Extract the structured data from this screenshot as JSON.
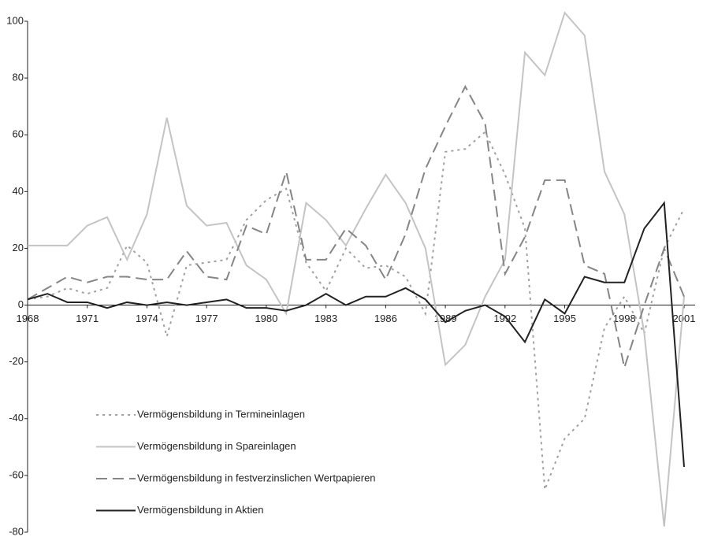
{
  "chart_data": {
    "type": "line",
    "x": [
      1968,
      1969,
      1970,
      1971,
      1972,
      1973,
      1974,
      1975,
      1976,
      1977,
      1978,
      1979,
      1980,
      1981,
      1982,
      1983,
      1984,
      1985,
      1986,
      1987,
      1988,
      1989,
      1990,
      1991,
      1992,
      1993,
      1994,
      1995,
      1996,
      1997,
      1998,
      1999,
      2000,
      2001
    ],
    "xlim": [
      1968,
      2001
    ],
    "xticks": [
      1968,
      1971,
      1974,
      1977,
      1980,
      1983,
      1986,
      1989,
      1992,
      1995,
      1998,
      2001
    ],
    "ylim": [
      -80,
      100
    ],
    "yticks": [
      -80,
      -60,
      -40,
      -20,
      0,
      20,
      40,
      60,
      80,
      100
    ],
    "grid": false,
    "legend": "lower left",
    "series": [
      {
        "name": "Vermögensbildung in Termineinlagen",
        "color": "#a0a0a0",
        "style": "dotted",
        "values": [
          2,
          3,
          6,
          4,
          6,
          21,
          15,
          -11,
          14,
          15,
          16,
          30,
          37,
          41,
          15,
          5,
          20,
          13,
          14,
          10,
          -3,
          54,
          55,
          61,
          46,
          27,
          -65,
          -47,
          -40,
          -8,
          3,
          -10,
          20,
          34
        ]
      },
      {
        "name": "Vermögensbildung in Spareinlagen",
        "color": "#c4c4c4",
        "style": "solid",
        "values": [
          21,
          21,
          21,
          28,
          31,
          16,
          32,
          66,
          35,
          28,
          29,
          14,
          9,
          -3,
          36,
          30,
          21,
          34,
          46,
          36,
          20,
          -21,
          -14,
          3,
          16,
          89,
          81,
          103,
          95,
          47,
          32,
          -10,
          -78,
          3
        ]
      },
      {
        "name": "Vermögensbildung in festverzinslichen Wertpapieren",
        "color": "#858585",
        "style": "dashed",
        "values": [
          2,
          6,
          10,
          8,
          10,
          10,
          9,
          9,
          19,
          10,
          9,
          28,
          25,
          47,
          16,
          16,
          27,
          21,
          9,
          25,
          48,
          63,
          77,
          64,
          11,
          24,
          44,
          44,
          14,
          11,
          -22,
          0,
          20,
          3
        ]
      },
      {
        "name": "Vermögensbildung in Aktien",
        "color": "#222222",
        "style": "solid",
        "values": [
          2,
          4,
          1,
          1,
          -1,
          1,
          0,
          1,
          0,
          1,
          2,
          -1,
          -1,
          -2,
          0,
          4,
          0,
          3,
          3,
          6,
          2,
          -6,
          -2,
          0,
          -4,
          -13,
          2,
          -3,
          10,
          8,
          8,
          27,
          36,
          -57
        ]
      }
    ]
  }
}
